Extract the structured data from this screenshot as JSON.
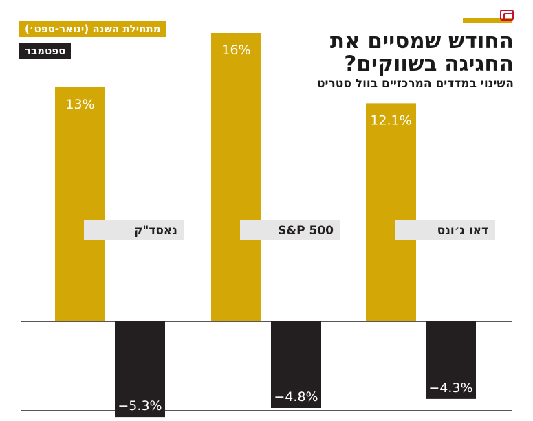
{
  "title": "החודש שמסיים את החגיגה בשווקים?",
  "subtitle": "השינוי במדדים המרכזיים בוול סטריט",
  "legend": {
    "ytd": "מתחילת השנה (ינואר-ספט׳)",
    "month": "ספטמבר"
  },
  "colors": {
    "ytd": "#d3a806",
    "month": "#231f20",
    "label_box": "#e6e6e6"
  },
  "brand": {
    "logo": "publisher-logo-icon"
  },
  "chart_data": {
    "type": "bar",
    "categories": [
      "נאסד\"ק",
      "S&P 500",
      "דאו ג׳ונס"
    ],
    "series": [
      {
        "name": "מתחילת השנה (ינואר-ספט׳)",
        "values": [
          13,
          16,
          12.1
        ],
        "labels": [
          "13%",
          "16%",
          "12.1%"
        ]
      },
      {
        "name": "ספטמבר",
        "values": [
          -5.3,
          -4.8,
          -4.3
        ],
        "labels": [
          "−5.3%",
          "−4.8%",
          "−4.3%"
        ]
      }
    ],
    "ylim": [
      -5.5,
      18
    ],
    "grid": false,
    "legend_position": "top-left"
  }
}
